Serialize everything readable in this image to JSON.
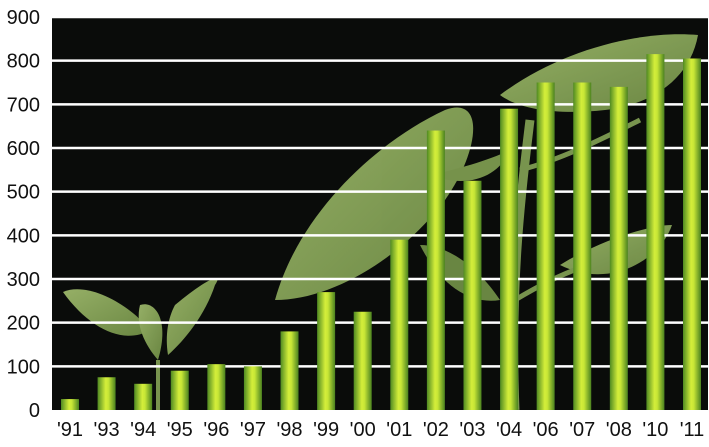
{
  "chart_data": {
    "type": "bar",
    "title": "",
    "xlabel": "",
    "ylabel": "",
    "categories": [
      "'91",
      "'93",
      "'94",
      "'95",
      "'96",
      "'97",
      "'98",
      "'99",
      "'00",
      "'01",
      "'02",
      "'03",
      "'04",
      "'06",
      "'07",
      "'08",
      "'10",
      "'11"
    ],
    "values": [
      25,
      75,
      60,
      90,
      105,
      100,
      180,
      270,
      225,
      390,
      640,
      525,
      690,
      750,
      750,
      740,
      815,
      805
    ],
    "ylim": [
      0,
      900
    ],
    "yticks": [
      "0",
      "100",
      "200",
      "300",
      "400",
      "500",
      "600",
      "700",
      "800",
      "900"
    ],
    "grid": true,
    "background": "photo of a young plant with green leaves on black",
    "colors": {
      "plot_background": "#0a0c0a",
      "gridline": "#ffffff",
      "bar_dark": "#4f8a22",
      "bar_light": "#d4ee3a",
      "leaf": "#8aa85a",
      "text": "#111111"
    }
  }
}
